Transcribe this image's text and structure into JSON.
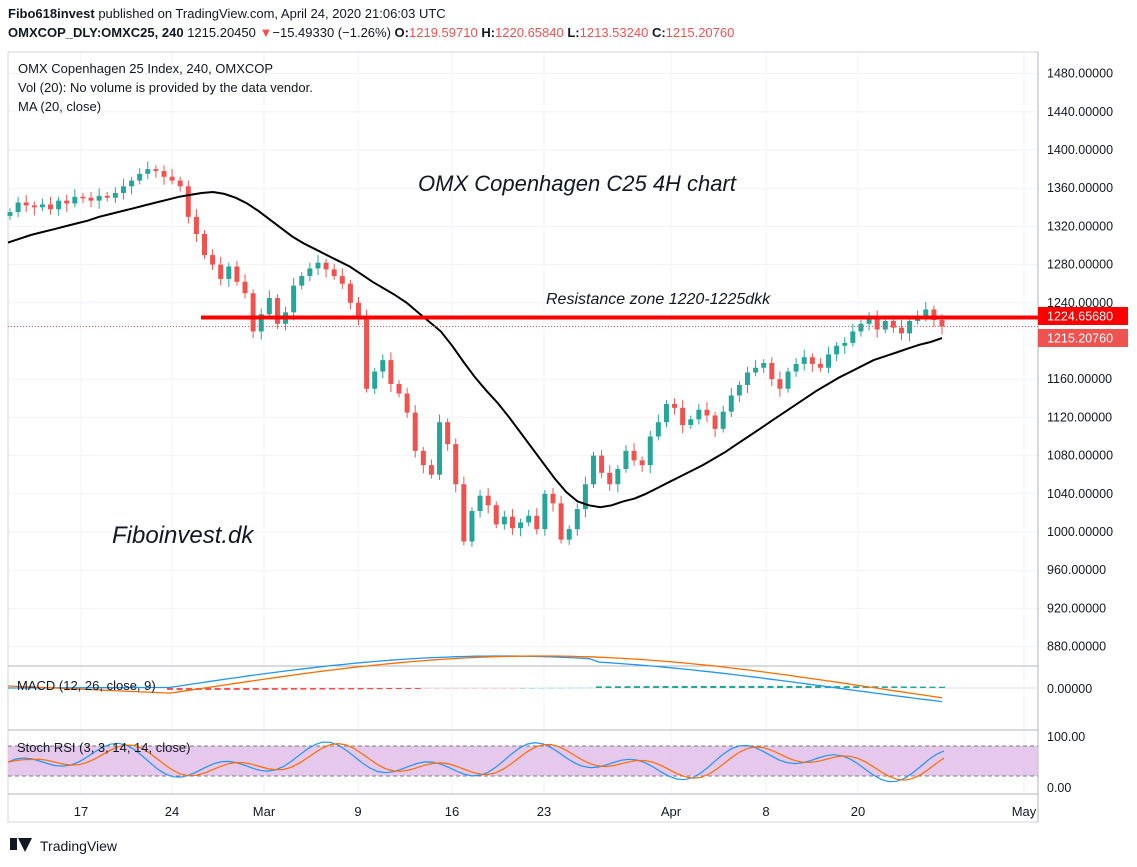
{
  "header": {
    "publisher": "Fibo618invest",
    "published_text": "published on TradingView.com, April 24, 2020 21:06:03 UTC",
    "symbol": "OMXCOP_DLY:OMXC25, 240",
    "last": "1215.20450",
    "change": "−15.49330 (−1.26%)",
    "o_label": "O:",
    "o": "1219.59710",
    "h_label": "H:",
    "h": "1220.65840",
    "l_label": "L:",
    "l": "1213.53240",
    "c_label": "C:",
    "c": "1215.20760"
  },
  "chart_data": {
    "type": "candlestick",
    "legend": {
      "title": "OMX Copenhagen 25 Index, 240, OMXCOP",
      "vol": "Vol (20): No volume is provided by the data vendor.",
      "ma": "MA (20, close)"
    },
    "annotation_title": "OMX Copenhagen C25 4H chart",
    "watermark": "Fiboinvest.dk",
    "resistance_label": "Resistance zone 1220-1225dkk",
    "resistance_level": 1224.6568,
    "last_close": 1215.2076,
    "price_tag_resistance": "1224.65680",
    "price_tag_last": "1215.20760",
    "y_ticks": [
      "1480.00000",
      "1440.00000",
      "1400.00000",
      "1360.00000",
      "1320.00000",
      "1280.00000",
      "1240.00000",
      "1160.00000",
      "1120.00000",
      "1080.00000",
      "1040.00000",
      "1000.00000",
      "960.00000",
      "920.00000",
      "880.00000"
    ],
    "ylim": [
      860,
      1490
    ],
    "x_ticks": [
      "17",
      "24",
      "Mar",
      "9",
      "16",
      "23",
      "Apr",
      "8",
      "20",
      "May"
    ],
    "candles_close": [
      1335,
      1345,
      1342,
      1340,
      1343,
      1338,
      1347,
      1344,
      1351,
      1350,
      1347,
      1352,
      1350,
      1355,
      1362,
      1368,
      1375,
      1380,
      1378,
      1372,
      1368,
      1362,
      1330,
      1312,
      1290,
      1280,
      1265,
      1278,
      1262,
      1250,
      1210,
      1228,
      1245,
      1218,
      1230,
      1258,
      1268,
      1276,
      1282,
      1275,
      1268,
      1260,
      1240,
      1225,
      1150,
      1168,
      1180,
      1155,
      1145,
      1125,
      1085,
      1070,
      1060,
      1115,
      1092,
      1050,
      990,
      1022,
      1038,
      1028,
      1008,
      1016,
      1004,
      1010,
      1017,
      1003,
      1040,
      1030,
      992,
      1003,
      1024,
      1050,
      1080,
      1062,
      1050,
      1066,
      1085,
      1075,
      1070,
      1100,
      1115,
      1134,
      1130,
      1112,
      1118,
      1128,
      1122,
      1108,
      1126,
      1143,
      1154,
      1167,
      1172,
      1177,
      1160,
      1150,
      1168,
      1176,
      1183,
      1176,
      1172,
      1186,
      1195,
      1198,
      1210,
      1218,
      1224,
      1212,
      1221,
      1214,
      1208,
      1221,
      1226,
      1233,
      1222,
      1215.2
    ],
    "ma_20": [
      1303,
      1307,
      1311,
      1314,
      1317,
      1320,
      1323,
      1326,
      1330,
      1333,
      1336,
      1339,
      1342,
      1345,
      1348,
      1351,
      1353,
      1355,
      1356,
      1354,
      1350,
      1344,
      1336,
      1327,
      1318,
      1309,
      1302,
      1296,
      1290,
      1284,
      1278,
      1270,
      1262,
      1255,
      1248,
      1240,
      1230,
      1220,
      1210,
      1195,
      1178,
      1162,
      1148,
      1135,
      1120,
      1104,
      1088,
      1072,
      1056,
      1042,
      1032,
      1028,
      1026,
      1028,
      1032,
      1035,
      1040,
      1046,
      1052,
      1058,
      1064,
      1070,
      1077,
      1084,
      1092,
      1100,
      1108,
      1116,
      1124,
      1132,
      1140,
      1148,
      1155,
      1162,
      1168,
      1174,
      1180,
      1184,
      1188,
      1192,
      1196,
      1199,
      1203
    ],
    "macd_label": "MACD (12, 26, close, 9)",
    "macd_tick": "0.00000",
    "stoch_label": "Stoch RSI (3, 3, 14, 14, close)",
    "stoch_ticks": [
      "100.00",
      "0.00"
    ],
    "colors": {
      "up": "#26a69a",
      "down": "#ef5350",
      "resistance": "#ff0000",
      "ma": "#000000",
      "macd": "#2196f3",
      "signal": "#ff6d00",
      "stoch_band": "#e1bee7"
    }
  },
  "footer": {
    "brand": "TradingView"
  }
}
